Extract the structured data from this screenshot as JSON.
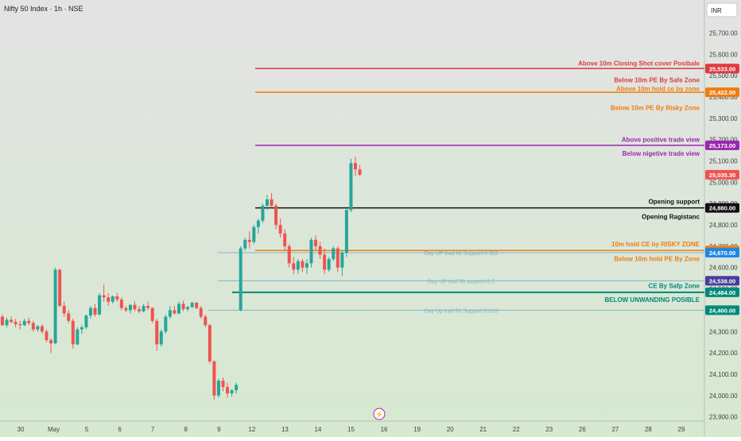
{
  "header": {
    "symbol_title": "Nifty 50 Index · 1h · NSE",
    "currency": "INR"
  },
  "colors": {
    "bg_top": "#e3e3e3",
    "bg_bottom": "#d6e9d0",
    "bull": "#26a69a",
    "bear": "#ef5350",
    "axis_text": "#404040",
    "red": "#e03a3e",
    "orange": "#ef7d0e",
    "purple": "#9c27b0",
    "black": "#111111",
    "teal": "#00897b",
    "fib": "#7fb6c4",
    "blue": "#1e88e5",
    "navy": "#4b3a9c"
  },
  "chart_data": {
    "type": "candlestick",
    "ylim": [
      23880,
      25780
    ],
    "y_ticks": [
      {
        "value": 25700,
        "label": "25,700.00"
      },
      {
        "value": 25600,
        "label": "25,600.00"
      },
      {
        "value": 25500,
        "label": "25,500.00"
      },
      {
        "value": 25400,
        "label": "25,400.00"
      },
      {
        "value": 25300,
        "label": "25,300.00"
      },
      {
        "value": 25200,
        "label": "25,200.00"
      },
      {
        "value": 25100,
        "label": "25,100.00"
      },
      {
        "value": 25000,
        "label": "25,000.00"
      },
      {
        "value": 24900,
        "label": "24,900.00"
      },
      {
        "value": 24800,
        "label": "24,800.00"
      },
      {
        "value": 24700,
        "label": "24,700.00"
      },
      {
        "value": 24600,
        "label": "24,600.00"
      },
      {
        "value": 24500,
        "label": "24,500.00"
      },
      {
        "value": 24400,
        "label": "24,400.00"
      },
      {
        "value": 24300,
        "label": "24,300.00"
      },
      {
        "value": 24200,
        "label": "24,200.00"
      },
      {
        "value": 24100,
        "label": "24,100.00"
      },
      {
        "value": 24000,
        "label": "24,000.00"
      },
      {
        "value": 23900,
        "label": "23,900.00"
      }
    ],
    "x_ticks": [
      "30",
      "May",
      "5",
      "6",
      "7",
      "8",
      "9",
      "12",
      "13",
      "14",
      "15",
      "16",
      "19",
      "20",
      "21",
      "22",
      "23",
      "26",
      "27",
      "28",
      "29"
    ],
    "candles": [
      [
        24370,
        24380,
        24325,
        24330
      ],
      [
        24330,
        24365,
        24320,
        24355
      ],
      [
        24355,
        24370,
        24340,
        24345
      ],
      [
        24345,
        24360,
        24320,
        24335
      ],
      [
        24335,
        24350,
        24310,
        24330
      ],
      [
        24330,
        24360,
        24325,
        24350
      ],
      [
        24350,
        24365,
        24330,
        24340
      ],
      [
        24340,
        24350,
        24300,
        24310
      ],
      [
        24310,
        24330,
        24300,
        24325
      ],
      [
        24325,
        24335,
        24290,
        24300
      ],
      [
        24300,
        24310,
        24250,
        24260
      ],
      [
        24260,
        24270,
        24200,
        24245
      ],
      [
        24245,
        24600,
        24240,
        24590
      ],
      [
        24590,
        24595,
        24415,
        24420
      ],
      [
        24420,
        24440,
        24370,
        24385
      ],
      [
        24385,
        24400,
        24340,
        24350
      ],
      [
        24350,
        24360,
        24220,
        24240
      ],
      [
        24240,
        24320,
        24235,
        24310
      ],
      [
        24310,
        24330,
        24290,
        24320
      ],
      [
        24320,
        24380,
        24310,
        24375
      ],
      [
        24375,
        24420,
        24360,
        24410
      ],
      [
        24410,
        24430,
        24370,
        24380
      ],
      [
        24380,
        24480,
        24375,
        24470
      ],
      [
        24470,
        24520,
        24440,
        24460
      ],
      [
        24460,
        24480,
        24420,
        24440
      ],
      [
        24440,
        24470,
        24430,
        24465
      ],
      [
        24465,
        24480,
        24440,
        24450
      ],
      [
        24450,
        24460,
        24400,
        24410
      ],
      [
        24410,
        24420,
        24390,
        24400
      ],
      [
        24400,
        24430,
        24385,
        24425
      ],
      [
        24425,
        24440,
        24395,
        24405
      ],
      [
        24405,
        24420,
        24385,
        24395
      ],
      [
        24395,
        24430,
        24390,
        24420
      ],
      [
        24420,
        24440,
        24400,
        24410
      ],
      [
        24410,
        24415,
        24340,
        24350
      ],
      [
        24350,
        24360,
        24210,
        24240
      ],
      [
        24240,
        24310,
        24230,
        24300
      ],
      [
        24300,
        24380,
        24290,
        24370
      ],
      [
        24370,
        24420,
        24360,
        24400
      ],
      [
        24400,
        24420,
        24380,
        24385
      ],
      [
        24385,
        24440,
        24380,
        24430
      ],
      [
        24430,
        24445,
        24395,
        24405
      ],
      [
        24405,
        24420,
        24395,
        24415
      ],
      [
        24415,
        24440,
        24410,
        24435
      ],
      [
        24435,
        24440,
        24405,
        24410
      ],
      [
        24410,
        24420,
        24360,
        24370
      ],
      [
        24370,
        24380,
        24320,
        24330
      ],
      [
        24330,
        24335,
        24150,
        24160
      ],
      [
        24160,
        24165,
        23980,
        24000
      ],
      [
        24000,
        24080,
        23990,
        24070
      ],
      [
        24070,
        24085,
        24020,
        24040
      ],
      [
        24040,
        24060,
        23990,
        24010
      ],
      [
        24010,
        24030,
        23995,
        24025
      ],
      [
        24025,
        24060,
        24010,
        24050
      ],
      [
        24400,
        24700,
        24395,
        24690
      ],
      [
        24690,
        24740,
        24680,
        24730
      ],
      [
        24730,
        24770,
        24690,
        24720
      ],
      [
        24720,
        24800,
        24710,
        24790
      ],
      [
        24790,
        24830,
        24760,
        24820
      ],
      [
        24820,
        24900,
        24810,
        24890
      ],
      [
        24890,
        24940,
        24870,
        24920
      ],
      [
        24920,
        24950,
        24880,
        24890
      ],
      [
        24890,
        24900,
        24780,
        24800
      ],
      [
        24800,
        24830,
        24740,
        24760
      ],
      [
        24760,
        24780,
        24680,
        24700
      ],
      [
        24700,
        24710,
        24600,
        24620
      ],
      [
        24620,
        24650,
        24570,
        24590
      ],
      [
        24590,
        24640,
        24570,
        24630
      ],
      [
        24630,
        24640,
        24580,
        24600
      ],
      [
        24600,
        24640,
        24570,
        24620
      ],
      [
        24620,
        24740,
        24600,
        24730
      ],
      [
        24730,
        24750,
        24680,
        24700
      ],
      [
        24700,
        24720,
        24640,
        24660
      ],
      [
        24660,
        24690,
        24570,
        24590
      ],
      [
        24590,
        24650,
        24580,
        24640
      ],
      [
        24640,
        24700,
        24630,
        24690
      ],
      [
        24690,
        24700,
        24580,
        24600
      ],
      [
        24600,
        24680,
        24560,
        24670
      ],
      [
        24670,
        24880,
        24650,
        24870
      ],
      [
        24870,
        25110,
        24860,
        25090
      ],
      [
        25090,
        25120,
        25030,
        25060
      ],
      [
        25060,
        25080,
        25030,
        25035
      ]
    ],
    "levels": [
      {
        "value": 25533,
        "price_label": "25,533.00",
        "color": "red",
        "text": "Above 10m Closing Shot cover Posibale",
        "text_color": "red",
        "text_pos": "above"
      },
      {
        "value": 25422,
        "price_label": "25,422.00",
        "color": "orange",
        "text": "",
        "text_color": "orange",
        "text_pos": "above"
      },
      {
        "value": 25173,
        "price_label": "25,173.00",
        "color": "purple",
        "text": "",
        "text_color": "purple",
        "text_pos": "above"
      },
      {
        "value": 24880,
        "price_label": "24,880.00",
        "color": "black",
        "text": "",
        "text_color": "black",
        "text_pos": "above"
      },
      {
        "value": 24680,
        "price_label": "24,680.00",
        "color": "orange",
        "text": "",
        "text_color": "orange",
        "text_pos": "above"
      },
      {
        "value": 24484,
        "price_label": "24,484.00",
        "color": "teal",
        "text": "",
        "text_color": "teal",
        "text_pos": "above"
      }
    ],
    "level_notes": [
      {
        "value": 25480,
        "text": "Below 10m PE By Safe Zone",
        "color": "red"
      },
      {
        "value": 25440,
        "text": "Above 10m hold ce by zone",
        "color": "orange"
      },
      {
        "value": 25350,
        "text": "Below 10m PE By Risky Zone",
        "color": "orange"
      },
      {
        "value": 25201,
        "text": "Above positive trade view",
        "color": "purple"
      },
      {
        "value": 25135,
        "text": "Below nigetive trade view",
        "color": "purple"
      },
      {
        "value": 24910,
        "text": "Opening support",
        "color": "black"
      },
      {
        "value": 24840,
        "text": "Opening Ragistanc",
        "color": "black"
      },
      {
        "value": 24710,
        "text": "10m hold CE by RISKY ZONE",
        "color": "orange"
      },
      {
        "value": 24642,
        "text": "Below 10m hold PE By Zone",
        "color": "orange"
      },
      {
        "value": 24515,
        "text": "CE By Safp Zone",
        "color": "teal"
      },
      {
        "value": 24450,
        "text": "BELOW UNWANDING POSIBLE",
        "color": "teal"
      }
    ],
    "fib_lines": [
      {
        "value": 24670,
        "label": "Day UP trad fib Support 0.382",
        "price_label": "24,670.00"
      },
      {
        "value": 24538,
        "label": "Day UP trad fib support 0.5",
        "price_label": "24,538.00"
      },
      {
        "value": 24400,
        "label": "Day Up trad fib Support 0.618",
        "price_label": "24,400.00"
      }
    ],
    "last_price": {
      "value": 25035.3,
      "label": "25,035.30"
    },
    "marker": {
      "symbol": "⚡"
    }
  }
}
